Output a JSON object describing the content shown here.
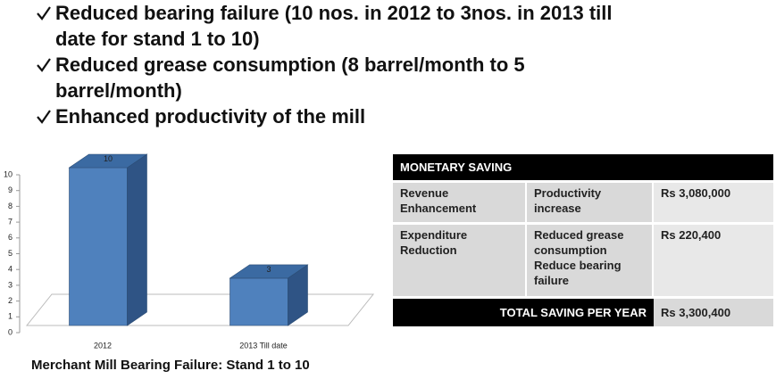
{
  "bullets": [
    "Reduced bearing failure (10 nos. in 2012 to 3nos.  in 2013 till date for stand 1 to 10)",
    "Reduced grease consumption (8 barrel/month to 5 barrel/month)",
    "Enhanced productivity of the mill"
  ],
  "chart_data": {
    "type": "bar",
    "title": "Merchant Mill Bearing Failure: Stand 1 to 10",
    "categories": [
      "2012",
      "2013 Till date"
    ],
    "values": [
      10,
      3
    ],
    "color": "#4f81bd",
    "ylim": [
      0,
      10
    ],
    "yticks": [
      0,
      1,
      2,
      3,
      4,
      5,
      6,
      7,
      8,
      9,
      10
    ]
  },
  "table": {
    "title": "MONETARY SAVING",
    "rows": [
      [
        "Revenue Enhancement",
        [
          "Productivity increase"
        ],
        "Rs 3,080,000"
      ],
      [
        "Expenditure Reduction",
        [
          "Reduced grease consumption",
          "Reduce bearing failure"
        ],
        "Rs 220,400"
      ]
    ],
    "total": [
      "TOTAL  SAVING PER YEAR",
      "Rs 3,300,400"
    ]
  }
}
